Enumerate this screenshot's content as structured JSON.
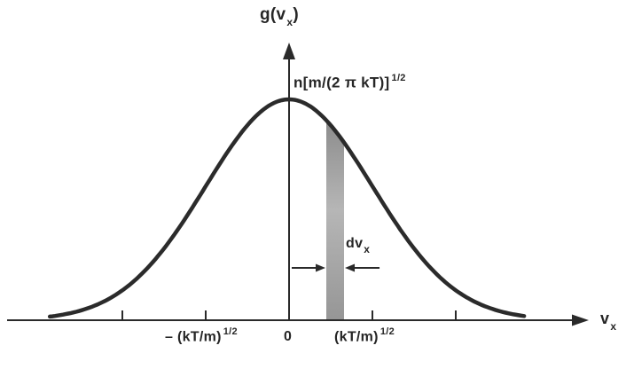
{
  "figure": {
    "background": "#ffffff"
  },
  "colors": {
    "ink": "#2a2a2a",
    "curve": "#2b2b2b",
    "strip_top": "#8c8c8c",
    "strip_mid": "#b6b6b6",
    "strip_bottom": "#969696"
  },
  "chart_data": {
    "type": "line",
    "curve": "gaussian",
    "description": "One-dimensional Maxwell-Boltzmann velocity distribution: g(vx) versus vx, peak value n[m/(2 pi kT)]^(1/2) at vx = 0, with a shaded strip of width dvx near vx ~ 0.55 (kT/m)^(1/2)",
    "title": "",
    "xlabel": "vx",
    "ylabel": "g(vx)",
    "x_unit_sigma": "(kT/m)^(1/2)",
    "x_domain_sigma": [
      -2.87,
      2.82
    ],
    "peak_value_label": "n[m/(2 π kT)]^(1/2)",
    "ticks_sigma": [
      -2,
      -1,
      1,
      2
    ],
    "labeled_ticks": [
      {
        "x_sigma": -1,
        "label": "- (kT/m)^(1/2)"
      },
      {
        "x_sigma": 0,
        "label": "0"
      },
      {
        "x_sigma": 1,
        "label": "(kT/m)^(1/2)"
      }
    ],
    "strip_sigma": [
      0.447,
      0.66
    ],
    "strip_label": "dvx",
    "grid": false,
    "legend": false
  },
  "labels": {
    "y_axis": {
      "pre": "g(v",
      "sub": "x",
      "post": ")"
    },
    "peak": {
      "pre": "n[m/(2 π kT)]",
      "sup": "1/2"
    },
    "strip": {
      "pre": "dv",
      "sub": "x"
    },
    "tick_neg": {
      "pre": "– (kT/m)",
      "sup": "1/2"
    },
    "tick_zero": "0",
    "tick_pos": {
      "pre": "(kT/m)",
      "sup": "1/2"
    },
    "x_axis": {
      "pre": "v",
      "sub": "x"
    }
  }
}
